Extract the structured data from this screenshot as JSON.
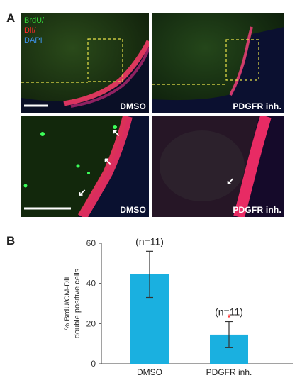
{
  "panel_labels": {
    "a": "A",
    "b": "B"
  },
  "stain_legend": [
    {
      "label": "BrdU/",
      "color": "#35d23a"
    },
    {
      "label": "DiI/",
      "color": "#ff2a2a"
    },
    {
      "label": "DAPI",
      "color": "#3d8fe0"
    }
  ],
  "images": {
    "top_left_label": "DMSO",
    "top_right_label": "PDGFR inh.",
    "bottom_left_label": "DMSO",
    "bottom_right_label": "PDGFR inh."
  },
  "colors": {
    "bar": "#1ab0e0",
    "significance": "#ff3b3b",
    "axis": "#444444"
  },
  "chart_data": {
    "type": "bar",
    "categories": [
      "DMSO",
      "PDGFR inh."
    ],
    "values": [
      44.5,
      14.5
    ],
    "errors": [
      11.5,
      6.5
    ],
    "annotations": [
      "(n=11)",
      "(n=11)"
    ],
    "significance": [
      "",
      "*"
    ],
    "ylabel_line1": "% BrdU/CM-DiI",
    "ylabel_line2": "double positive cells",
    "ylim": [
      0,
      60
    ],
    "yticks": [
      0,
      20,
      40,
      60
    ]
  }
}
